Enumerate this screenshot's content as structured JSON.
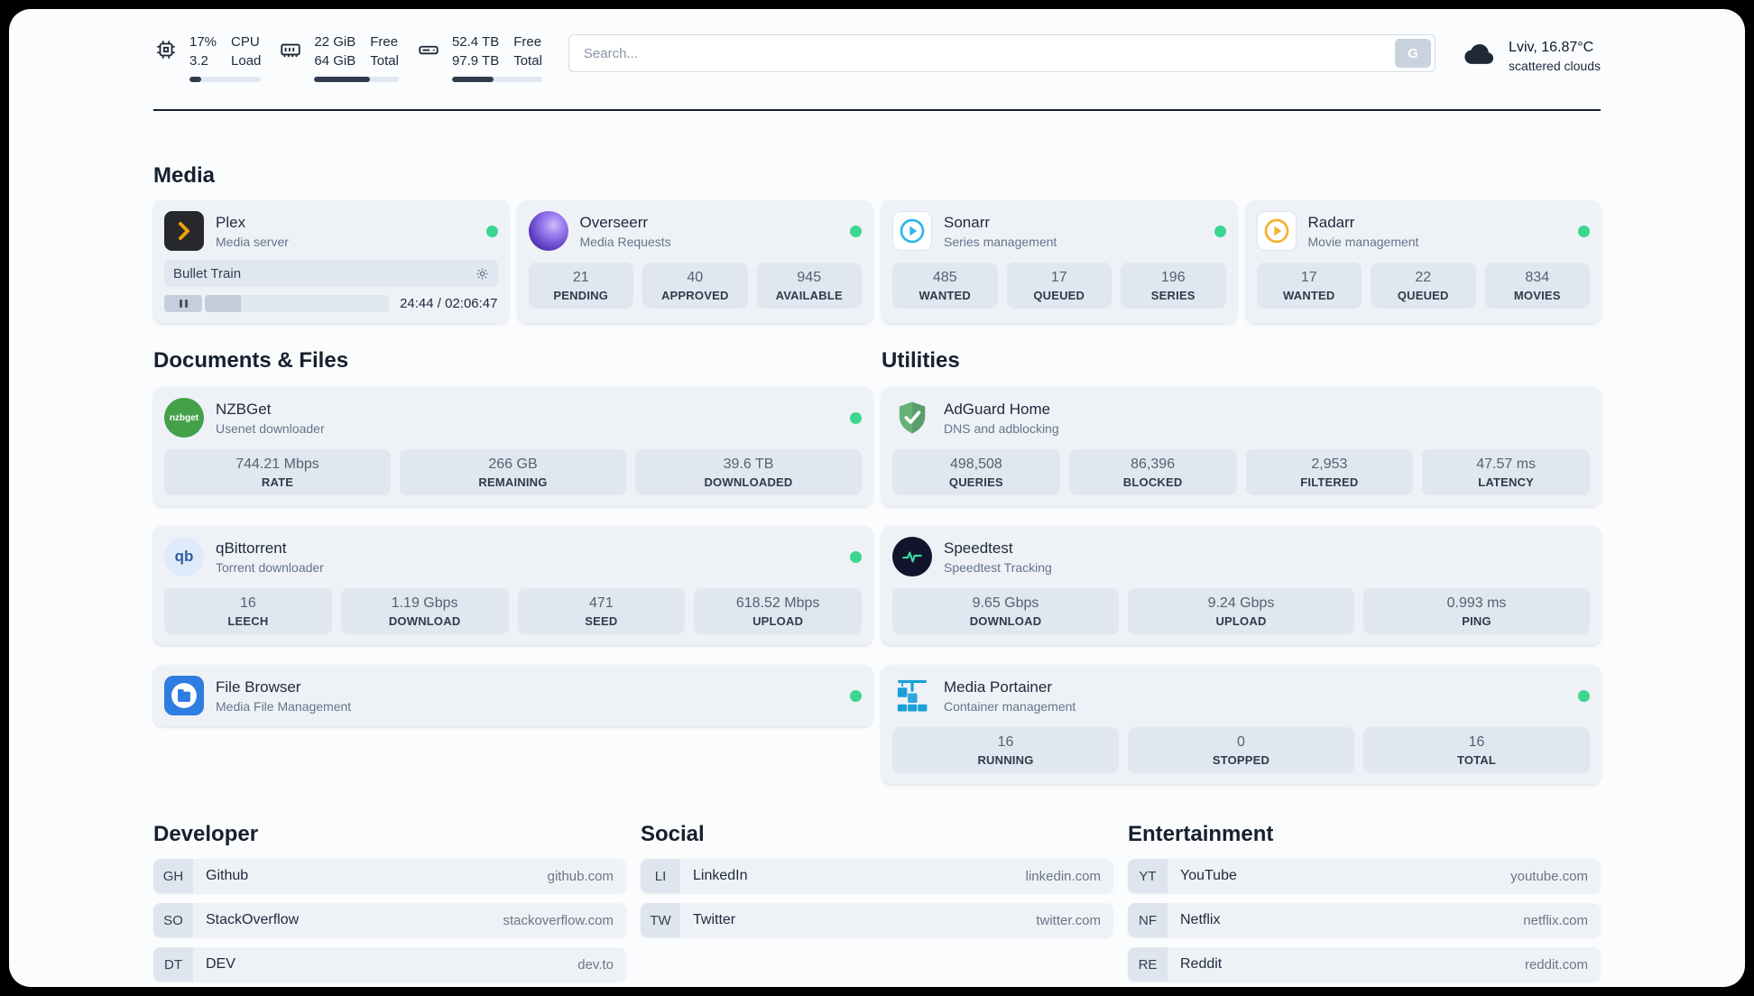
{
  "colors": {
    "status_online": "#3bd68f",
    "plex": "#e5a00d",
    "overseerr": "#6d28d9",
    "sonarr": "#2cb7e8",
    "radarr": "#ffc230",
    "nzbget": "#44a148",
    "qbittorrent": "#2e5f9e",
    "filebrowser": "#2f7de1",
    "adguard": "#67b279",
    "speedtest_accent": "#35e0a1",
    "portainer": "#1a9fd9"
  },
  "header": {
    "cpu": {
      "values": [
        "17%",
        "3.2"
      ],
      "labels": [
        "CPU",
        "Load"
      ],
      "bar_fill": "17%"
    },
    "memory": {
      "values": [
        "22 GiB",
        "64 GiB"
      ],
      "labels": [
        "Free",
        "Total"
      ],
      "bar_fill": "66%"
    },
    "disk": {
      "values": [
        "52.4 TB",
        "97.9 TB"
      ],
      "labels": [
        "Free",
        "Total"
      ],
      "bar_fill": "46%"
    },
    "search": {
      "placeholder": "Search...",
      "button_label": "G"
    },
    "weather": {
      "location": "Lviv, 16.87°C",
      "condition": "scattered clouds"
    }
  },
  "groups": {
    "media": {
      "title": "Media",
      "plex": {
        "name": "Plex",
        "description": "Media server",
        "now_playing": "Bullet Train",
        "time": "24:44 / 02:06:47",
        "progress": "19.5%"
      },
      "overseerr": {
        "name": "Overseerr",
        "description": "Media Requests",
        "stats": [
          {
            "value": "21",
            "label": "PENDING"
          },
          {
            "value": "40",
            "label": "APPROVED"
          },
          {
            "value": "945",
            "label": "AVAILABLE"
          }
        ]
      },
      "sonarr": {
        "name": "Sonarr",
        "description": "Series management",
        "stats": [
          {
            "value": "485",
            "label": "WANTED"
          },
          {
            "value": "17",
            "label": "QUEUED"
          },
          {
            "value": "196",
            "label": "SERIES"
          }
        ]
      },
      "radarr": {
        "name": "Radarr",
        "description": "Movie management",
        "stats": [
          {
            "value": "17",
            "label": "WANTED"
          },
          {
            "value": "22",
            "label": "QUEUED"
          },
          {
            "value": "834",
            "label": "MOVIES"
          }
        ]
      }
    },
    "documents": {
      "title": "Documents & Files",
      "nzbget": {
        "name": "NZBGet",
        "description": "Usenet downloader",
        "icon_text": "nzbget",
        "stats": [
          {
            "value": "744.21 Mbps",
            "label": "RATE"
          },
          {
            "value": "266 GB",
            "label": "REMAINING"
          },
          {
            "value": "39.6 TB",
            "label": "DOWNLOADED"
          }
        ]
      },
      "qbittorrent": {
        "name": "qBittorrent",
        "description": "Torrent downloader",
        "icon_text": "qb",
        "stats": [
          {
            "value": "16",
            "label": "LEECH"
          },
          {
            "value": "1.19 Gbps",
            "label": "DOWNLOAD"
          },
          {
            "value": "471",
            "label": "SEED"
          },
          {
            "value": "618.52 Mbps",
            "label": "UPLOAD"
          }
        ]
      },
      "filebrowser": {
        "name": "File Browser",
        "description": "Media File Management"
      }
    },
    "utilities": {
      "title": "Utilities",
      "adguard": {
        "name": "AdGuard Home",
        "description": "DNS and adblocking",
        "stats": [
          {
            "value": "498,508",
            "label": "QUERIES"
          },
          {
            "value": "86,396",
            "label": "BLOCKED"
          },
          {
            "value": "2,953",
            "label": "FILTERED"
          },
          {
            "value": "47.57 ms",
            "label": "LATENCY"
          }
        ]
      },
      "speedtest": {
        "name": "Speedtest",
        "description": "Speedtest Tracking",
        "stats": [
          {
            "value": "9.65 Gbps",
            "label": "DOWNLOAD"
          },
          {
            "value": "9.24 Gbps",
            "label": "UPLOAD"
          },
          {
            "value": "0.993 ms",
            "label": "PING"
          }
        ]
      },
      "portainer": {
        "name": "Media Portainer",
        "description": "Container management",
        "stats": [
          {
            "value": "16",
            "label": "RUNNING"
          },
          {
            "value": "0",
            "label": "STOPPED"
          },
          {
            "value": "16",
            "label": "TOTAL"
          }
        ]
      }
    }
  },
  "bookmarks": [
    {
      "title": "Developer",
      "items": [
        {
          "abbr": "GH",
          "name": "Github",
          "url": "github.com"
        },
        {
          "abbr": "SO",
          "name": "StackOverflow",
          "url": "stackoverflow.com"
        },
        {
          "abbr": "DT",
          "name": "DEV",
          "url": "dev.to"
        }
      ]
    },
    {
      "title": "Social",
      "items": [
        {
          "abbr": "LI",
          "name": "LinkedIn",
          "url": "linkedin.com"
        },
        {
          "abbr": "TW",
          "name": "Twitter",
          "url": "twitter.com"
        }
      ]
    },
    {
      "title": "Entertainment",
      "items": [
        {
          "abbr": "YT",
          "name": "YouTube",
          "url": "youtube.com"
        },
        {
          "abbr": "NF",
          "name": "Netflix",
          "url": "netflix.com"
        },
        {
          "abbr": "RE",
          "name": "Reddit",
          "url": "reddit.com"
        }
      ]
    }
  ]
}
